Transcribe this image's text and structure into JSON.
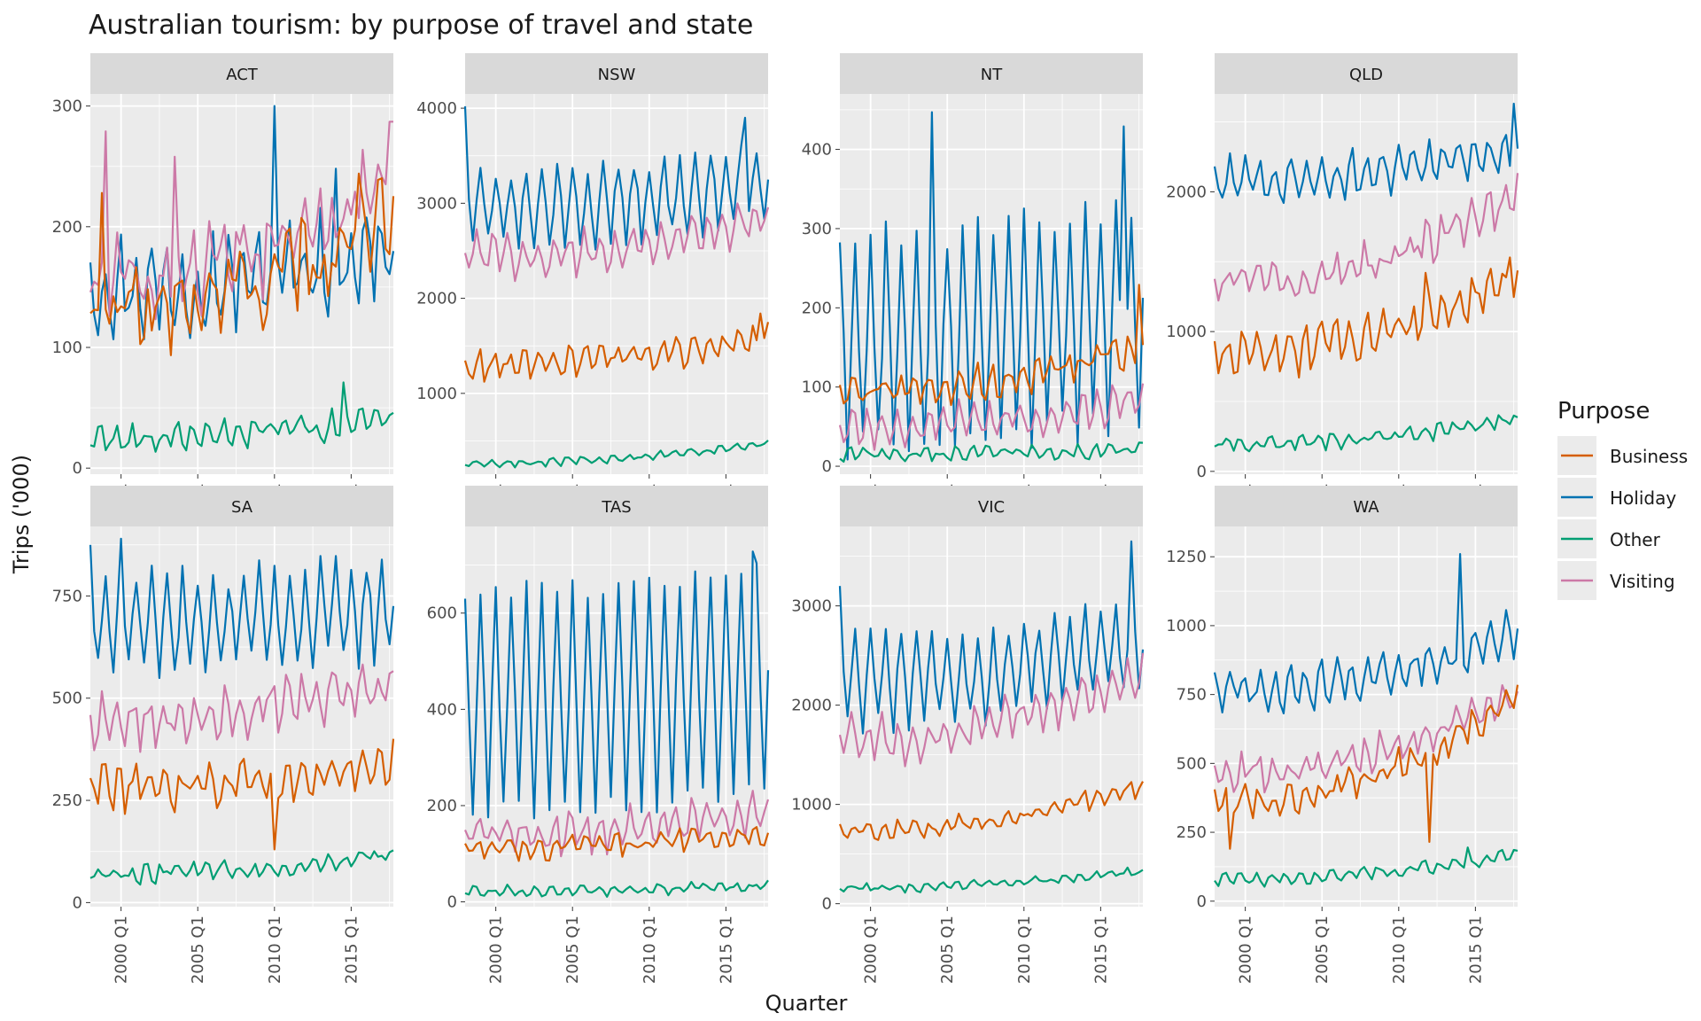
{
  "chart_data": {
    "type": "line",
    "title": "Australian tourism: by purpose of travel and state",
    "xlabel": "Quarter",
    "ylabel": "Trips ('000)",
    "x_range": [
      1998,
      2017.75
    ],
    "x_ticks": [
      {
        "value": 2000,
        "label": "2000 Q1"
      },
      {
        "value": 2005,
        "label": "2005 Q1"
      },
      {
        "value": 2010,
        "label": "2010 Q1"
      },
      {
        "value": 2015,
        "label": "2015 Q1"
      }
    ],
    "grid": true,
    "legend": {
      "title": "Purpose",
      "position": "right",
      "entries": [
        "Business",
        "Holiday",
        "Other",
        "Visiting"
      ]
    },
    "colors": {
      "Business": "#D55E00",
      "Holiday": "#0072B2",
      "Other": "#009E73",
      "Visiting": "#CC79A7"
    },
    "facets": [
      {
        "state": "ACT",
        "ylim": [
          -5,
          310
        ],
        "y_ticks": [
          0,
          100,
          200,
          300
        ],
        "series": {
          "Holiday": {
            "level": 150,
            "amp": 30,
            "trend": [
              0,
              30
            ],
            "noise": 20,
            "phase": 0.2,
            "spikes": [
              [
                2010,
                300
              ],
              [
                2014,
                248
              ]
            ]
          },
          "Visiting": {
            "level": 175,
            "amp": 20,
            "trend": [
              -20,
              60
            ],
            "noise": 25,
            "phase": 1.5,
            "spikes": [
              [
                1999,
                279
              ],
              [
                2003.5,
                258
              ],
              [
                2017.5,
                287
              ]
            ]
          },
          "Business": {
            "level": 140,
            "amp": 15,
            "trend": [
              -10,
              60
            ],
            "noise": 30,
            "phase": 0.8,
            "spikes": [
              [
                1998.75,
                228
              ],
              [
                2015.5,
                244
              ]
            ]
          },
          "Other": {
            "level": 25,
            "amp": 8,
            "trend": [
              0,
              15
            ],
            "noise": 7,
            "phase": 2.0,
            "spikes": [
              [
                2014.5,
                71
              ]
            ]
          }
        }
      },
      {
        "state": "NSW",
        "ylim": [
          150,
          4150
        ],
        "y_ticks": [
          1000,
          2000,
          3000,
          4000
        ],
        "series": {
          "Holiday": {
            "level": 2950,
            "amp": 380,
            "trend": [
              0,
              250
            ],
            "noise": 120,
            "phase": 0.0,
            "spikes": [
              [
                1998,
                4020
              ],
              [
                2016.25,
                3900
              ]
            ]
          },
          "Visiting": {
            "level": 2450,
            "amp": 180,
            "trend": [
              0,
              350
            ],
            "noise": 110,
            "phase": 1.2
          },
          "Business": {
            "level": 1300,
            "amp": 120,
            "trend": [
              0,
              250
            ],
            "noise": 90,
            "phase": 0.9,
            "spikes": [
              [
                2017.25,
                1840
              ]
            ]
          },
          "Other": {
            "level": 270,
            "amp": 30,
            "trend": [
              0,
              180
            ],
            "noise": 25,
            "phase": 2.1
          }
        }
      },
      {
        "state": "NT",
        "ylim": [
          -10,
          470
        ],
        "y_ticks": [
          0,
          100,
          200,
          300,
          400
        ],
        "series": {
          "Holiday": {
            "level": 160,
            "amp": 130,
            "trend": [
              0,
              30
            ],
            "noise": 25,
            "phase": 0.0,
            "spikes": [
              [
                2004,
                447
              ],
              [
                2016.5,
                429
              ]
            ]
          },
          "Visiting": {
            "level": 50,
            "amp": 20,
            "trend": [
              0,
              30
            ],
            "noise": 12,
            "phase": 1.3
          },
          "Business": {
            "level": 95,
            "amp": 15,
            "trend": [
              0,
              50
            ],
            "noise": 15,
            "phase": 0.7,
            "spikes": [
              [
                2017.5,
                229
              ]
            ]
          },
          "Other": {
            "level": 15,
            "amp": 6,
            "trend": [
              0,
              5
            ],
            "noise": 6,
            "phase": 2.3
          }
        }
      },
      {
        "state": "QLD",
        "ylim": [
          -20,
          2700
        ],
        "y_ticks": [
          0,
          1000,
          2000
        ],
        "series": {
          "Holiday": {
            "level": 2080,
            "amp": 130,
            "trend": [
              0,
              200
            ],
            "noise": 80,
            "phase": 0.4,
            "spikes": [
              [
                2017.5,
                2630
              ]
            ]
          },
          "Visiting": {
            "level": 1350,
            "amp": 100,
            "trend": [
              0,
              550
            ],
            "noise": 90,
            "phase": 1.1
          },
          "Business": {
            "level": 850,
            "amp": 120,
            "trend": [
              0,
              450
            ],
            "noise": 100,
            "phase": 0.6,
            "spikes": [
              [
                2011.75,
                1420
              ],
              [
                2017.25,
                1530
              ]
            ]
          },
          "Other": {
            "level": 200,
            "amp": 40,
            "trend": [
              0,
              150
            ],
            "noise": 35,
            "phase": 2.0
          }
        }
      },
      {
        "state": "SA",
        "ylim": [
          -10,
          920
        ],
        "y_ticks": [
          0,
          250,
          500,
          750
        ],
        "series": {
          "Holiday": {
            "level": 680,
            "amp": 110,
            "trend": [
              0,
              40
            ],
            "noise": 35,
            "phase": 0.0,
            "spikes": [
              [
                1998,
                875
              ],
              [
                2000,
                890
              ]
            ]
          },
          "Visiting": {
            "level": 450,
            "amp": 50,
            "trend": [
              0,
              80
            ],
            "noise": 35,
            "phase": 1.3
          },
          "Business": {
            "level": 280,
            "amp": 40,
            "trend": [
              0,
              60
            ],
            "noise": 35,
            "phase": 0.8,
            "spikes": [
              [
                2010,
                130
              ]
            ]
          },
          "Other": {
            "level": 70,
            "amp": 15,
            "trend": [
              0,
              40
            ],
            "noise": 15,
            "phase": 2.2
          }
        }
      },
      {
        "state": "TAS",
        "ylim": [
          -10,
          780
        ],
        "y_ticks": [
          0,
          200,
          400,
          600
        ],
        "series": {
          "Holiday": {
            "level": 420,
            "amp": 230,
            "trend": [
              0,
              40
            ],
            "noise": 25,
            "phase": 0.0,
            "spikes": [
              [
                1998,
                630
              ],
              [
                2016.75,
                728
              ]
            ]
          },
          "Visiting": {
            "level": 140,
            "amp": 30,
            "trend": [
              0,
              40
            ],
            "noise": 25,
            "phase": 1.2
          },
          "Business": {
            "level": 110,
            "amp": 15,
            "trend": [
              0,
              30
            ],
            "noise": 15,
            "phase": 0.7
          },
          "Other": {
            "level": 22,
            "amp": 8,
            "trend": [
              0,
              10
            ],
            "noise": 7,
            "phase": 2.1
          }
        }
      },
      {
        "state": "VIC",
        "ylim": [
          -30,
          3800
        ],
        "y_ticks": [
          0,
          1000,
          2000,
          3000
        ],
        "series": {
          "Holiday": {
            "level": 2250,
            "amp": 420,
            "trend": [
              0,
              350
            ],
            "noise": 120,
            "phase": 0.0,
            "spikes": [
              [
                1998,
                3200
              ],
              [
                2017,
                3650
              ]
            ]
          },
          "Visiting": {
            "level": 1650,
            "amp": 180,
            "trend": [
              0,
              550
            ],
            "noise": 120,
            "phase": 1.3
          },
          "Business": {
            "level": 750,
            "amp": 70,
            "trend": [
              0,
              380
            ],
            "noise": 60,
            "phase": 0.8
          },
          "Other": {
            "level": 160,
            "amp": 30,
            "trend": [
              0,
              150
            ],
            "noise": 25,
            "phase": 2.0
          }
        }
      },
      {
        "state": "WA",
        "ylim": [
          -20,
          1360
        ],
        "y_ticks": [
          0,
          250,
          500,
          750,
          1000,
          1250
        ],
        "series": {
          "Holiday": {
            "level": 770,
            "amp": 60,
            "trend": [
              0,
              180
            ],
            "noise": 40,
            "phase": 0.3,
            "spikes": [
              [
                2014,
                1260
              ]
            ]
          },
          "Visiting": {
            "level": 470,
            "amp": 40,
            "trend": [
              0,
              250
            ],
            "noise": 40,
            "phase": 1.1
          },
          "Business": {
            "level": 370,
            "amp": 40,
            "trend": [
              0,
              320
            ],
            "noise": 40,
            "phase": 0.7,
            "spikes": [
              [
                1999,
                190
              ],
              [
                2012,
                215
              ]
            ]
          },
          "Other": {
            "level": 80,
            "amp": 15,
            "trend": [
              0,
              80
            ],
            "noise": 15,
            "phase": 2.1,
            "spikes": [
              [
                2014.5,
                195
              ]
            ]
          }
        }
      }
    ]
  }
}
